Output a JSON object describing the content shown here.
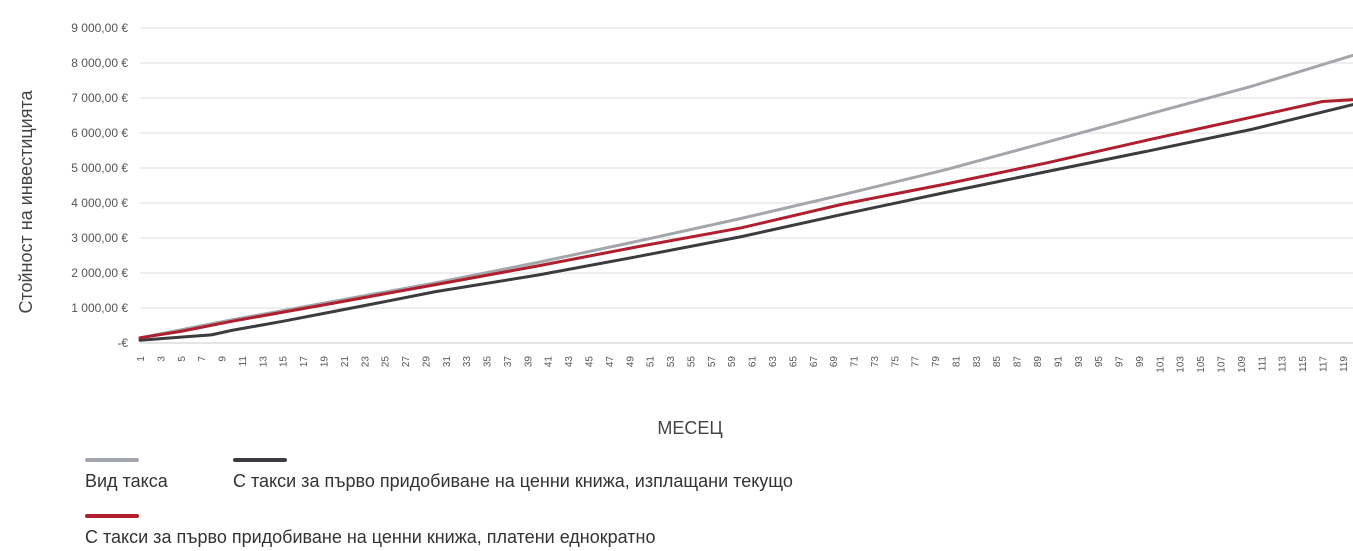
{
  "chart_data": {
    "type": "line",
    "title": "",
    "xlabel": "МЕСЕЦ",
    "ylabel": "Стойност на инвестицията",
    "ylim": [
      0,
      9000
    ],
    "x": [
      1,
      120
    ],
    "x_ticks": [
      1,
      3,
      5,
      7,
      9,
      11,
      13,
      15,
      17,
      19,
      21,
      23,
      25,
      27,
      29,
      31,
      33,
      35,
      37,
      39,
      41,
      43,
      45,
      47,
      49,
      51,
      53,
      55,
      57,
      59,
      61,
      63,
      65,
      67,
      69,
      71,
      73,
      75,
      77,
      79,
      81,
      83,
      85,
      87,
      89,
      91,
      93,
      95,
      97,
      99,
      101,
      103,
      105,
      107,
      109,
      111,
      113,
      115,
      117,
      119
    ],
    "y_ticks": [
      {
        "value": 0,
        "label": "-€"
      },
      {
        "value": 1000,
        "label": "1 000,00 €"
      },
      {
        "value": 2000,
        "label": "2 000,00 €"
      },
      {
        "value": 3000,
        "label": "3 000,00 €"
      },
      {
        "value": 4000,
        "label": "4 000,00 €"
      },
      {
        "value": 5000,
        "label": "5 000,00 €"
      },
      {
        "value": 6000,
        "label": "6 000,00 €"
      },
      {
        "value": 7000,
        "label": "7 000,00 €"
      },
      {
        "value": 8000,
        "label": "8 000,00 €"
      },
      {
        "value": 9000,
        "label": "9 000,00 €"
      }
    ],
    "grid": true,
    "legend_position": "bottom-left",
    "legend_heading": "Вид такса",
    "series": [
      {
        "name": "",
        "color": "#a3a6ab",
        "points": [
          [
            1,
            150
          ],
          [
            10,
            660
          ],
          [
            20,
            1190
          ],
          [
            30,
            1720
          ],
          [
            40,
            2300
          ],
          [
            50,
            2920
          ],
          [
            60,
            3560
          ],
          [
            70,
            4240
          ],
          [
            80,
            4950
          ],
          [
            90,
            5740
          ],
          [
            100,
            6540
          ],
          [
            110,
            7330
          ],
          [
            120,
            8220
          ]
        ]
      },
      {
        "name": "С такси за първо придобиване на ценни книжа, изплащани текущо",
        "color": "#3c3c40",
        "points": [
          [
            1,
            80
          ],
          [
            5,
            170
          ],
          [
            8,
            230
          ],
          [
            10,
            360
          ],
          [
            15,
            620
          ],
          [
            20,
            900
          ],
          [
            25,
            1180
          ],
          [
            30,
            1470
          ],
          [
            40,
            1940
          ],
          [
            50,
            2480
          ],
          [
            60,
            3040
          ],
          [
            70,
            3680
          ],
          [
            80,
            4300
          ],
          [
            90,
            4900
          ],
          [
            100,
            5490
          ],
          [
            110,
            6100
          ],
          [
            120,
            6810
          ]
        ]
      },
      {
        "name": "С такси за първо придобиване на ценни книжа, платени еднократно",
        "color": "#b01f2e",
        "points": [
          [
            1,
            150
          ],
          [
            5,
            330
          ],
          [
            10,
            620
          ],
          [
            20,
            1140
          ],
          [
            30,
            1670
          ],
          [
            40,
            2200
          ],
          [
            50,
            2760
          ],
          [
            60,
            3290
          ],
          [
            70,
            3970
          ],
          [
            80,
            4540
          ],
          [
            90,
            5150
          ],
          [
            100,
            5810
          ],
          [
            110,
            6450
          ],
          [
            117,
            6900
          ],
          [
            120,
            6950
          ]
        ]
      }
    ]
  }
}
